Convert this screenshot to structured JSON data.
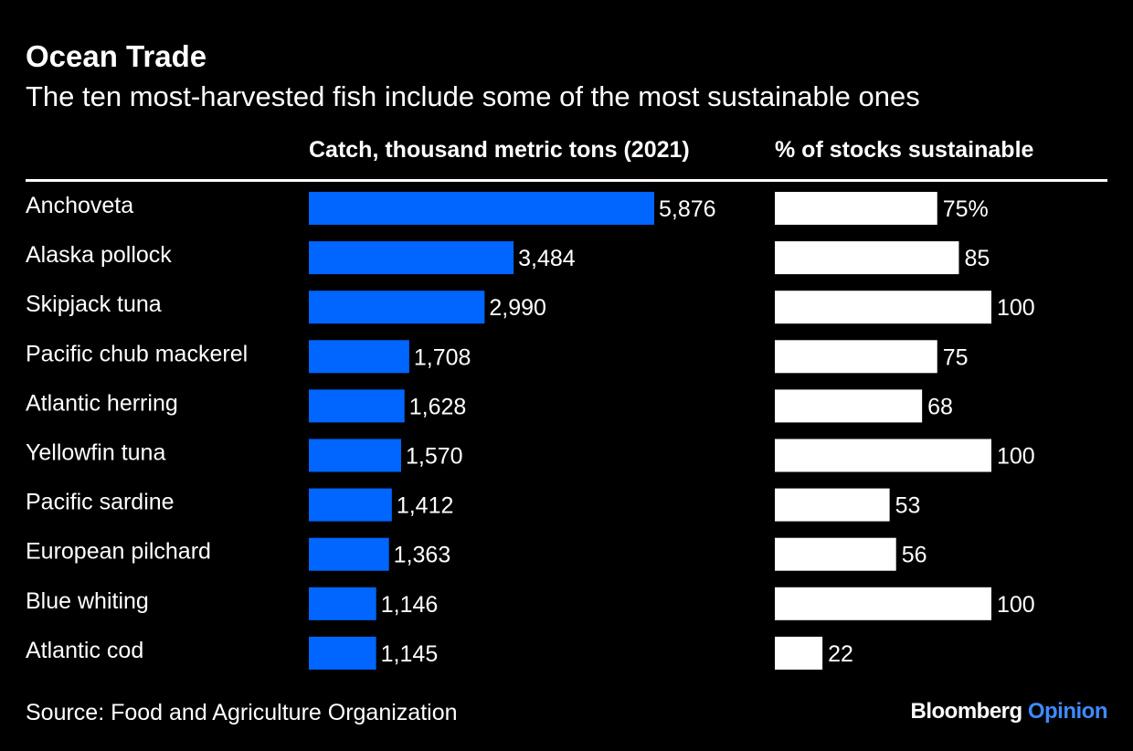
{
  "title": "Ocean Trade",
  "subtitle": "The ten most-harvested fish include some of the most sustainable ones",
  "source": "Source: Food and Agriculture Organization",
  "brand": {
    "name": "Bloomberg",
    "section": "Opinion"
  },
  "colors": {
    "background": "#000000",
    "catch_bar": "#0066ff",
    "sustainable_bar": "#ffffff",
    "brand_accent": "#3d8bff"
  },
  "chart_data": [
    {
      "type": "bar",
      "orientation": "horizontal",
      "title": "Catch, thousand metric tons (2021)",
      "categories": [
        "Anchoveta",
        "Alaska pollock",
        "Skipjack tuna",
        "Pacific chub mackerel",
        "Atlantic herring",
        "Yellowfin tuna",
        "Pacific sardine",
        "European pilchard",
        "Blue whiting",
        "Atlantic cod"
      ],
      "values": [
        5876,
        3484,
        2990,
        1708,
        1628,
        1570,
        1412,
        1363,
        1146,
        1145
      ],
      "labels": [
        "5,876",
        "3,484",
        "2,990",
        "1,708",
        "1,628",
        "1,570",
        "1,412",
        "1,363",
        "1,146",
        "1,145"
      ],
      "xlim": [
        0,
        5876
      ],
      "grid": false
    },
    {
      "type": "bar",
      "orientation": "horizontal",
      "title": "% of stocks sustainable",
      "categories": [
        "Anchoveta",
        "Alaska pollock",
        "Skipjack tuna",
        "Pacific chub mackerel",
        "Atlantic herring",
        "Yellowfin tuna",
        "Pacific sardine",
        "European pilchard",
        "Blue whiting",
        "Atlantic cod"
      ],
      "values": [
        75,
        85,
        100,
        75,
        68,
        100,
        53,
        56,
        100,
        22
      ],
      "labels": [
        "75%",
        "85",
        "100",
        "75",
        "68",
        "100",
        "53",
        "56",
        "100",
        "22"
      ],
      "xlim": [
        0,
        100
      ],
      "grid": false
    }
  ]
}
